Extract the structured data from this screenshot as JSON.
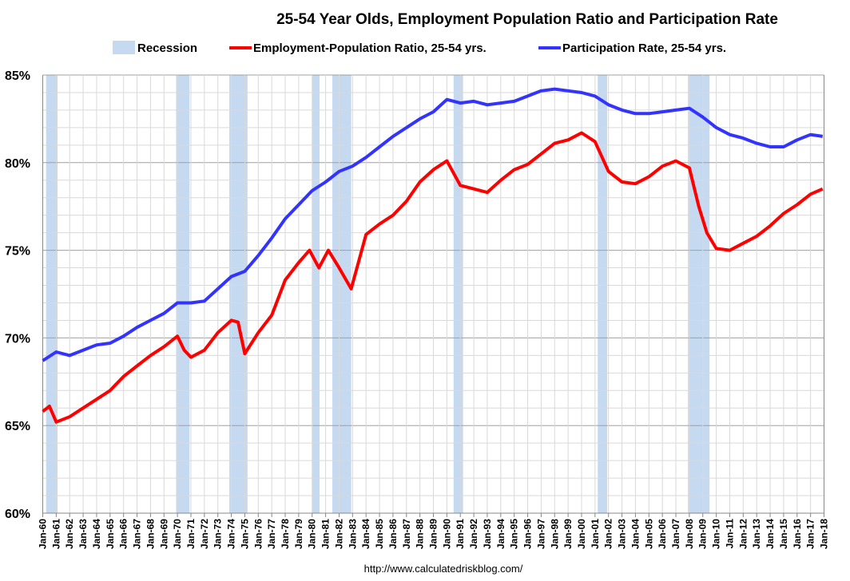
{
  "chart_data": {
    "type": "line",
    "title": "25-54 Year Olds, Employment Population Ratio and Participation Rate",
    "source": "http://www.calculatedriskblog.com/",
    "xlabel": "",
    "ylabel": "",
    "ylim": [
      60,
      85
    ],
    "xlim": [
      1960,
      2018
    ],
    "yticks": [
      "60%",
      "65%",
      "70%",
      "75%",
      "80%",
      "85%"
    ],
    "ytick_values": [
      60,
      65,
      70,
      75,
      80,
      85
    ],
    "xticks": [
      "Jan-60",
      "Jan-61",
      "Jan-62",
      "Jan-63",
      "Jan-64",
      "Jan-65",
      "Jan-66",
      "Jan-67",
      "Jan-68",
      "Jan-69",
      "Jan-70",
      "Jan-71",
      "Jan-72",
      "Jan-73",
      "Jan-74",
      "Jan-75",
      "Jan-76",
      "Jan-77",
      "Jan-78",
      "Jan-79",
      "Jan-80",
      "Jan-81",
      "Jan-82",
      "Jan-83",
      "Jan-84",
      "Jan-85",
      "Jan-86",
      "Jan-87",
      "Jan-88",
      "Jan-89",
      "Jan-90",
      "Jan-91",
      "Jan-92",
      "Jan-93",
      "Jan-94",
      "Jan-95",
      "Jan-96",
      "Jan-97",
      "Jan-98",
      "Jan-99",
      "Jan-00",
      "Jan-01",
      "Jan-02",
      "Jan-03",
      "Jan-04",
      "Jan-05",
      "Jan-06",
      "Jan-07",
      "Jan-08",
      "Jan-09",
      "Jan-10",
      "Jan-11",
      "Jan-12",
      "Jan-13",
      "Jan-14",
      "Jan-15",
      "Jan-16",
      "Jan-17",
      "Jan-18"
    ],
    "grid": true,
    "legend_position": "top",
    "legend": [
      "Recession",
      "Employment-Population Ratio, 25-54 yrs.",
      "Participation Rate, 25-54 yrs."
    ],
    "recessions": [
      [
        1960.25,
        1961.1
      ],
      [
        1969.9,
        1970.9
      ],
      [
        1973.85,
        1975.2
      ],
      [
        1980.0,
        1980.55
      ],
      [
        1981.5,
        1982.9
      ],
      [
        1990.5,
        1991.2
      ],
      [
        2001.2,
        2001.9
      ],
      [
        2007.9,
        2009.5
      ]
    ],
    "recession_color": "#c5d9f1",
    "series": [
      {
        "name": "Employment-Population Ratio, 25-54 yrs.",
        "color": "#ff0000",
        "x": [
          1960,
          1960.5,
          1961,
          1962,
          1963,
          1964,
          1965,
          1966,
          1967,
          1968,
          1969,
          1970,
          1970.5,
          1971,
          1972,
          1973,
          1974,
          1974.5,
          1975,
          1976,
          1977,
          1978,
          1979,
          1979.8,
          1980.5,
          1981.2,
          1982,
          1982.9,
          1983.5,
          1984,
          1985,
          1986,
          1987,
          1988,
          1989,
          1990,
          1991,
          1992,
          1993,
          1994,
          1995,
          1996,
          1997,
          1998,
          1999,
          2000,
          2001,
          2002,
          2003,
          2004,
          2005,
          2006,
          2007,
          2008,
          2008.7,
          2009.3,
          2010,
          2011,
          2012,
          2013,
          2014,
          2015,
          2016,
          2017,
          2017.9
        ],
        "y": [
          65.8,
          66.1,
          65.2,
          65.5,
          66.0,
          66.5,
          67.0,
          67.8,
          68.4,
          69.0,
          69.5,
          70.1,
          69.3,
          68.9,
          69.3,
          70.3,
          71.0,
          70.9,
          69.1,
          70.3,
          71.3,
          73.3,
          74.3,
          75.0,
          74.0,
          75.0,
          74.0,
          72.8,
          74.5,
          75.9,
          76.5,
          77.0,
          77.8,
          78.9,
          79.6,
          80.1,
          78.7,
          78.5,
          78.3,
          79.0,
          79.6,
          79.9,
          80.5,
          81.1,
          81.3,
          81.7,
          81.2,
          79.5,
          78.9,
          78.8,
          79.2,
          79.8,
          80.1,
          79.7,
          77.5,
          76.0,
          75.1,
          75.0,
          75.4,
          75.8,
          76.4,
          77.1,
          77.6,
          78.2,
          78.5
        ]
      },
      {
        "name": "Participation Rate, 25-54 yrs.",
        "color": "#3333ff",
        "x": [
          1960,
          1961,
          1962,
          1963,
          1964,
          1965,
          1966,
          1967,
          1968,
          1969,
          1970,
          1971,
          1972,
          1973,
          1974,
          1975,
          1976,
          1977,
          1978,
          1979,
          1980,
          1981,
          1982,
          1983,
          1984,
          1985,
          1986,
          1987,
          1988,
          1989,
          1990,
          1991,
          1992,
          1993,
          1994,
          1995,
          1996,
          1997,
          1998,
          1999,
          2000,
          2001,
          2002,
          2003,
          2004,
          2005,
          2006,
          2007,
          2008,
          2009,
          2010,
          2011,
          2012,
          2013,
          2014,
          2015,
          2016,
          2017,
          2017.9
        ],
        "y": [
          68.7,
          69.2,
          69.0,
          69.3,
          69.6,
          69.7,
          70.1,
          70.6,
          71.0,
          71.4,
          72.0,
          72.0,
          72.1,
          72.8,
          73.5,
          73.8,
          74.7,
          75.7,
          76.8,
          77.6,
          78.4,
          78.9,
          79.5,
          79.8,
          80.3,
          80.9,
          81.5,
          82.0,
          82.5,
          82.9,
          83.6,
          83.4,
          83.5,
          83.3,
          83.4,
          83.5,
          83.8,
          84.1,
          84.2,
          84.1,
          84.0,
          83.8,
          83.3,
          83.0,
          82.8,
          82.8,
          82.9,
          83.0,
          83.1,
          82.6,
          82.0,
          81.6,
          81.4,
          81.1,
          80.9,
          80.9,
          81.3,
          81.6,
          81.5
        ]
      }
    ]
  }
}
